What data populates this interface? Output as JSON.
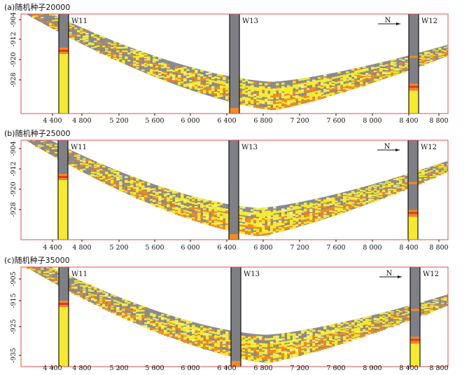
{
  "figure": {
    "colors": {
      "gray": "#8a8a8f",
      "yellow": "#f5eb2c",
      "lightyellow": "#f3f08a",
      "orange": "#f28a1e",
      "red": "#e4381f",
      "frame": "#d9534f"
    },
    "wells": [
      "W11",
      "W13",
      "W12"
    ],
    "north_label": "N",
    "panels": [
      {
        "label": "(a)随机种子20000",
        "y_ticks": [
          "-904",
          "-912",
          "-920",
          "-928"
        ],
        "x_ticks": [
          "4 400",
          "4 800",
          "5 200",
          "5 600",
          "6 000",
          "6 400",
          "6 800",
          "7 200",
          "7 600",
          "8 000",
          "8 400",
          "8 800"
        ]
      },
      {
        "label": "(b)随机种子25000",
        "y_ticks": [
          "-904",
          "-912",
          "-920",
          "-928"
        ],
        "x_ticks": [
          "4 400",
          "4 800",
          "5 200",
          "5 600",
          "6 000",
          "6 400",
          "6 800",
          "7 200",
          "7 600",
          "8 000",
          "8 400",
          "8 800"
        ]
      },
      {
        "label": "(c)随机种子35000",
        "y_ticks": [
          "-905",
          "-915",
          "-925",
          "-935"
        ],
        "x_ticks": [
          "4 400",
          "4 800",
          "5 200",
          "5 600",
          "6 000",
          "6 400",
          "6 800",
          "7 200",
          "7 600",
          "8 000",
          "8 400",
          "8 800"
        ]
      }
    ]
  }
}
